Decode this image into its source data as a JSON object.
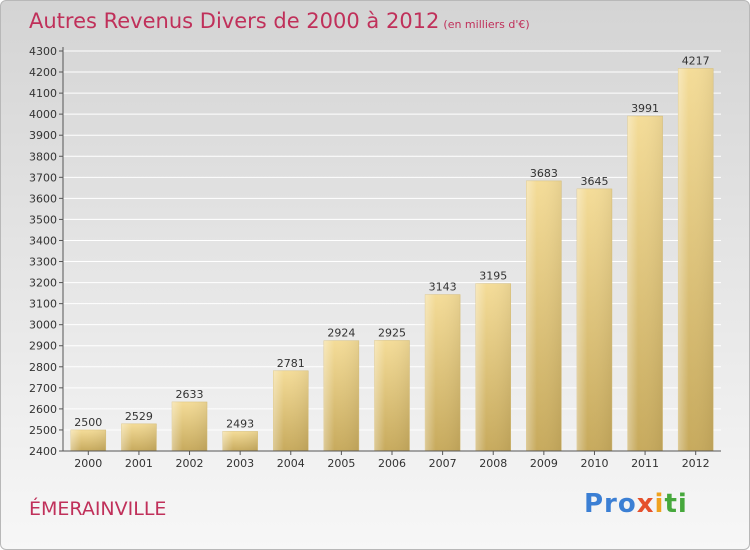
{
  "header": {
    "title": "Autres Revenus Divers de 2000 à 2012",
    "subtitle": "(en milliers d'€)"
  },
  "footer": {
    "location": "ÉMERAINVILLE",
    "logo_part1": "Pro",
    "logo_part2": "x",
    "logo_part3": "i",
    "logo_part4": "ti"
  },
  "chart_data": {
    "type": "bar",
    "title": "Autres Revenus Divers de 2000 à 2012",
    "xlabel": "",
    "ylabel": "",
    "categories": [
      "2000",
      "2001",
      "2002",
      "2003",
      "2004",
      "2005",
      "2006",
      "2007",
      "2008",
      "2009",
      "2010",
      "2011",
      "2012"
    ],
    "values": [
      2500,
      2529,
      2633,
      2493,
      2781,
      2924,
      2925,
      3143,
      3195,
      3683,
      3645,
      3991,
      4217
    ],
    "ylim": [
      2400,
      4300
    ],
    "yticks": [
      2400,
      2500,
      2600,
      2700,
      2800,
      2900,
      3000,
      3100,
      3200,
      3300,
      3400,
      3500,
      3600,
      3700,
      3800,
      3900,
      4000,
      4100,
      4200,
      4300
    ],
    "grid": true,
    "data_labels": true,
    "colors": {
      "bar_top": "#f4dc98",
      "bar_bottom": "#c7aa5d",
      "grid": "#ffffff",
      "axis": "#555555"
    }
  }
}
